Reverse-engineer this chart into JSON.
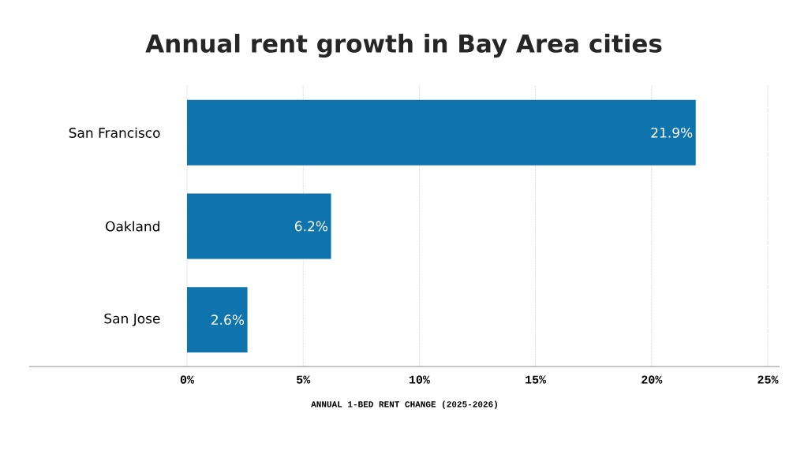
{
  "chart_data": {
    "type": "bar",
    "orientation": "horizontal",
    "title": "Annual rent growth in Bay Area cities",
    "xlabel": "ANNUAL 1-BED RENT CHANGE (2025-2026)",
    "categories": [
      "San Francisco",
      "Oakland",
      "San Jose"
    ],
    "values": [
      21.9,
      6.2,
      2.6
    ],
    "color": "#0f73ad",
    "value_labels": [
      "21.9%",
      "6.2%",
      "2.6%"
    ],
    "xlim": [
      0,
      25
    ],
    "xticks": [
      {
        "value": 0,
        "label": "0%"
      },
      {
        "value": 5,
        "label": "5%"
      },
      {
        "value": 10,
        "label": "10%"
      },
      {
        "value": 15,
        "label": "15%"
      },
      {
        "value": 20,
        "label": "20%"
      },
      {
        "value": 25,
        "label": "25%"
      }
    ],
    "grid": "x"
  }
}
